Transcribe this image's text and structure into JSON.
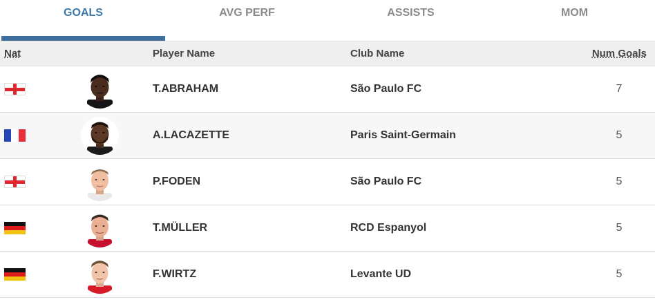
{
  "tabs": [
    {
      "label": "GOALS",
      "active": true
    },
    {
      "label": "AVG PERF",
      "active": false
    },
    {
      "label": "ASSISTS",
      "active": false
    },
    {
      "label": "MOM",
      "active": false
    }
  ],
  "table": {
    "headers": {
      "nat": "Nat",
      "player": "Player Name",
      "club": "Club Name",
      "goals": "Num Goals"
    },
    "rows": [
      {
        "flag": "england-flag",
        "player": "T.ABRAHAM",
        "club": "São Paulo FC",
        "goals": "7"
      },
      {
        "flag": "france-flag",
        "player": "A.LACAZETTE",
        "club": "Paris Saint-Germain",
        "goals": "5"
      },
      {
        "flag": "england-flag",
        "player": "P.FODEN",
        "club": "São Paulo FC",
        "goals": "5"
      },
      {
        "flag": "germany-flag",
        "player": "T.MÜLLER",
        "club": "RCD Espanyol",
        "goals": "5"
      },
      {
        "flag": "germany-flag",
        "player": "F.WIRTZ",
        "club": "Levante UD",
        "goals": "5"
      }
    ]
  },
  "colors": {
    "active_tab": "#3d78a9",
    "indicator": "#3d6f9e",
    "header_bg": "#efefef"
  }
}
